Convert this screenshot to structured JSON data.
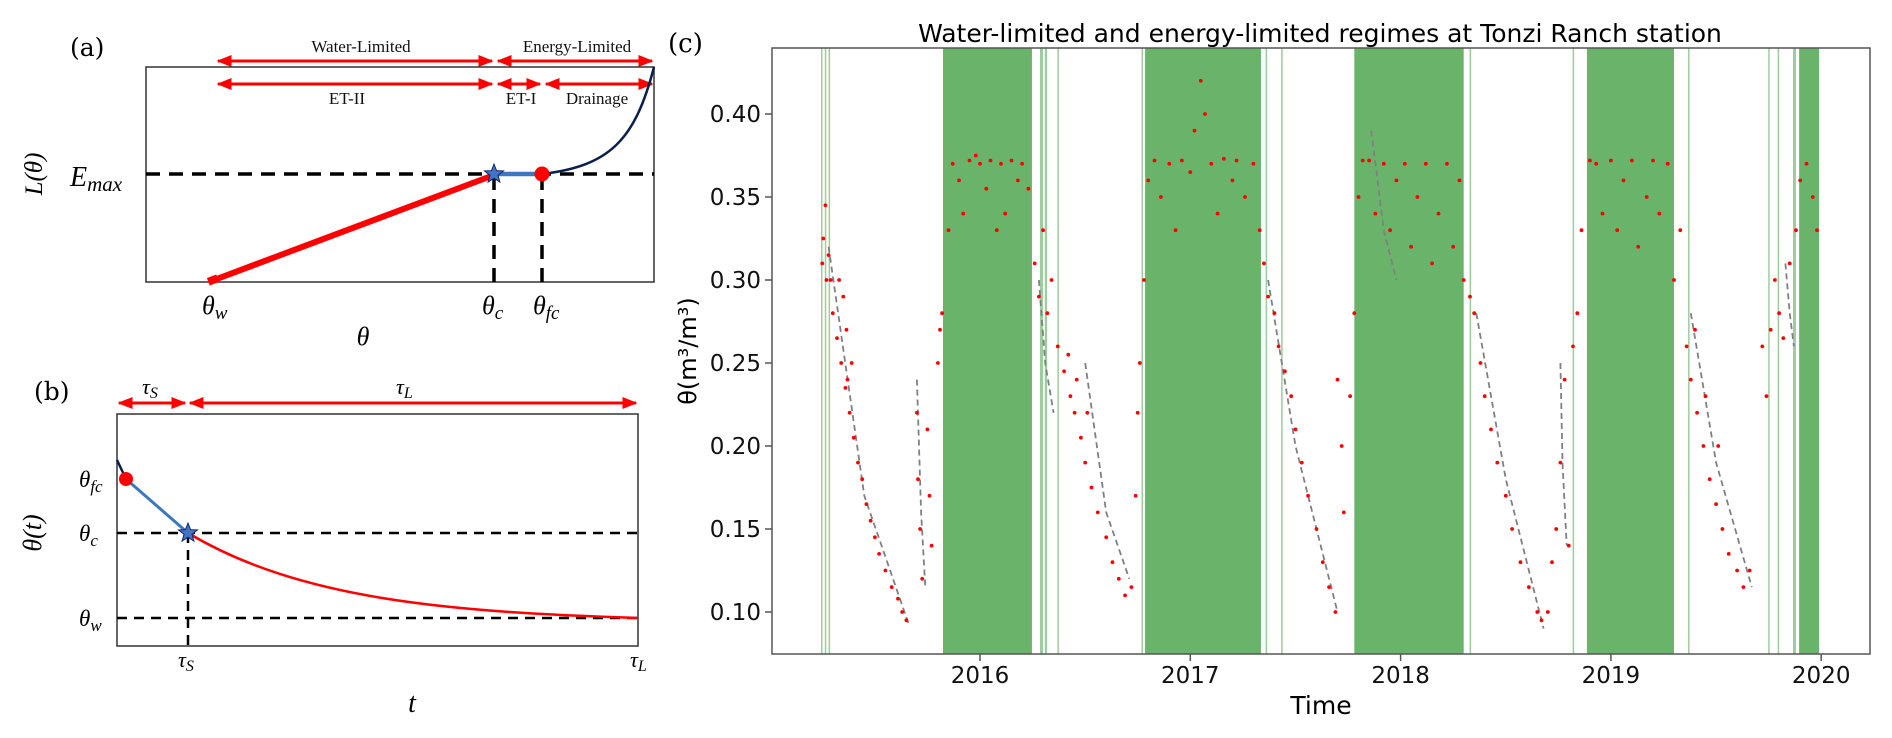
{
  "panel_a": {
    "label": "(a)",
    "ylabel": {
      "base": "L(θ)"
    },
    "emax": {
      "base": "E",
      "sub": "max"
    },
    "xlabel": "θ",
    "theta_w": {
      "base": "θ",
      "sub": "w"
    },
    "theta_c": {
      "base": "θ",
      "sub": "c"
    },
    "theta_fc": {
      "base": "θ",
      "sub": "fc"
    },
    "regimes": {
      "water_limited": "Water-Limited",
      "energy_limited": "Energy-Limited"
    },
    "stages": {
      "et2": "ET-II",
      "et1": "ET-I",
      "drainage": "Drainage"
    },
    "colors": {
      "stage2": "#ff0000",
      "stage1": "#3a78c0",
      "drainage": "#0b1f4d",
      "arrows": "#ff0000"
    }
  },
  "panel_b": {
    "label": "(b)",
    "ylabel": "θ(t)",
    "xlabel": "t",
    "tau_s": {
      "base": "τ",
      "sub": "S"
    },
    "tau_l": {
      "base": "τ",
      "sub": "L"
    },
    "theta_fc": {
      "base": "θ",
      "sub": "fc"
    },
    "theta_c": {
      "base": "θ",
      "sub": "c"
    },
    "theta_w": {
      "base": "θ",
      "sub": "w"
    }
  },
  "panel_c": {
    "label": "(c)"
  },
  "chart_data": {
    "type": "scatter",
    "title": "Water-limited and energy-limited regimes at Tonzi Ranch station",
    "xlabel": "Time",
    "ylabel": "θ(m³/m³)",
    "xlim": [
      2015.01,
      2020.23
    ],
    "ylim": [
      0.075,
      0.44
    ],
    "xticks": [
      2016,
      2017,
      2018,
      2019,
      2020
    ],
    "xtick_labels": [
      "2016",
      "2017",
      "2018",
      "2019",
      "2020"
    ],
    "yticks": [
      0.1,
      0.15,
      0.2,
      0.25,
      0.3,
      0.35,
      0.4
    ],
    "ytick_labels": [
      "0.10",
      "0.15",
      "0.20",
      "0.25",
      "0.30",
      "0.35",
      "0.40"
    ],
    "grid": false,
    "colors": {
      "points": "#ff0000",
      "energy_limited_shading": "#5aab5a",
      "fit": "#808080"
    },
    "energy_limited_periods": [
      [
        2015.244,
        2015.25
      ],
      [
        2015.262,
        2015.268
      ],
      [
        2015.28,
        2015.287
      ],
      [
        2015.824,
        2016.247
      ],
      [
        2016.285,
        2016.3
      ],
      [
        2016.308,
        2016.319
      ],
      [
        2016.368,
        2016.374
      ],
      [
        2016.768,
        2016.773
      ],
      [
        2016.785,
        2017.336
      ],
      [
        2017.358,
        2017.364
      ],
      [
        2017.432,
        2017.438
      ],
      [
        2017.78,
        2018.3
      ],
      [
        2018.328,
        2018.334
      ],
      [
        2018.818,
        2018.823
      ],
      [
        2018.886,
        2019.3
      ],
      [
        2019.367,
        2019.372
      ],
      [
        2019.748,
        2019.752
      ],
      [
        2019.793,
        2019.8
      ],
      [
        2019.866,
        2019.88
      ],
      [
        2019.895,
        2019.99
      ]
    ],
    "points": [
      [
        2015.25,
        0.31
      ],
      [
        2015.255,
        0.325
      ],
      [
        2015.265,
        0.345
      ],
      [
        2015.27,
        0.3
      ],
      [
        2015.28,
        0.315
      ],
      [
        2015.29,
        0.3
      ],
      [
        2015.3,
        0.28
      ],
      [
        2015.32,
        0.265
      ],
      [
        2015.33,
        0.3
      ],
      [
        2015.34,
        0.25
      ],
      [
        2015.35,
        0.29
      ],
      [
        2015.36,
        0.235
      ],
      [
        2015.365,
        0.27
      ],
      [
        2015.37,
        0.24
      ],
      [
        2015.38,
        0.22
      ],
      [
        2015.39,
        0.25
      ],
      [
        2015.4,
        0.205
      ],
      [
        2015.42,
        0.19
      ],
      [
        2015.44,
        0.18
      ],
      [
        2015.46,
        0.165
      ],
      [
        2015.48,
        0.155
      ],
      [
        2015.5,
        0.145
      ],
      [
        2015.52,
        0.135
      ],
      [
        2015.55,
        0.125
      ],
      [
        2015.58,
        0.115
      ],
      [
        2015.61,
        0.108
      ],
      [
        2015.63,
        0.1
      ],
      [
        2015.65,
        0.095
      ],
      [
        2015.7,
        0.22
      ],
      [
        2015.705,
        0.18
      ],
      [
        2015.715,
        0.15
      ],
      [
        2015.725,
        0.12
      ],
      [
        2015.75,
        0.21
      ],
      [
        2015.76,
        0.17
      ],
      [
        2015.77,
        0.14
      ],
      [
        2015.8,
        0.25
      ],
      [
        2015.81,
        0.27
      ],
      [
        2015.82,
        0.28
      ],
      [
        2015.85,
        0.33
      ],
      [
        2015.87,
        0.37
      ],
      [
        2015.9,
        0.36
      ],
      [
        2015.92,
        0.34
      ],
      [
        2015.95,
        0.372
      ],
      [
        2015.98,
        0.375
      ],
      [
        2016.0,
        0.37
      ],
      [
        2016.03,
        0.355
      ],
      [
        2016.05,
        0.372
      ],
      [
        2016.08,
        0.33
      ],
      [
        2016.1,
        0.37
      ],
      [
        2016.12,
        0.34
      ],
      [
        2016.15,
        0.372
      ],
      [
        2016.18,
        0.36
      ],
      [
        2016.2,
        0.37
      ],
      [
        2016.23,
        0.355
      ],
      [
        2016.26,
        0.31
      ],
      [
        2016.28,
        0.29
      ],
      [
        2016.3,
        0.33
      ],
      [
        2016.32,
        0.28
      ],
      [
        2016.34,
        0.3
      ],
      [
        2016.37,
        0.26
      ],
      [
        2016.4,
        0.245
      ],
      [
        2016.42,
        0.255
      ],
      [
        2016.43,
        0.23
      ],
      [
        2016.45,
        0.22
      ],
      [
        2016.46,
        0.24
      ],
      [
        2016.48,
        0.205
      ],
      [
        2016.5,
        0.19
      ],
      [
        2016.51,
        0.22
      ],
      [
        2016.53,
        0.175
      ],
      [
        2016.56,
        0.16
      ],
      [
        2016.6,
        0.145
      ],
      [
        2016.63,
        0.13
      ],
      [
        2016.66,
        0.12
      ],
      [
        2016.69,
        0.11
      ],
      [
        2016.72,
        0.115
      ],
      [
        2016.74,
        0.17
      ],
      [
        2016.75,
        0.22
      ],
      [
        2016.76,
        0.25
      ],
      [
        2016.78,
        0.3
      ],
      [
        2016.8,
        0.36
      ],
      [
        2016.83,
        0.372
      ],
      [
        2016.86,
        0.35
      ],
      [
        2016.9,
        0.37
      ],
      [
        2016.93,
        0.33
      ],
      [
        2016.96,
        0.372
      ],
      [
        2017.0,
        0.365
      ],
      [
        2017.02,
        0.39
      ],
      [
        2017.05,
        0.42
      ],
      [
        2017.07,
        0.4
      ],
      [
        2017.1,
        0.37
      ],
      [
        2017.13,
        0.34
      ],
      [
        2017.16,
        0.373
      ],
      [
        2017.2,
        0.36
      ],
      [
        2017.22,
        0.372
      ],
      [
        2017.26,
        0.35
      ],
      [
        2017.3,
        0.37
      ],
      [
        2017.33,
        0.33
      ],
      [
        2017.35,
        0.31
      ],
      [
        2017.37,
        0.29
      ],
      [
        2017.4,
        0.28
      ],
      [
        2017.42,
        0.26
      ],
      [
        2017.45,
        0.245
      ],
      [
        2017.48,
        0.23
      ],
      [
        2017.5,
        0.21
      ],
      [
        2017.53,
        0.19
      ],
      [
        2017.56,
        0.17
      ],
      [
        2017.6,
        0.15
      ],
      [
        2017.63,
        0.13
      ],
      [
        2017.66,
        0.115
      ],
      [
        2017.69,
        0.1
      ],
      [
        2017.7,
        0.24
      ],
      [
        2017.72,
        0.2
      ],
      [
        2017.73,
        0.16
      ],
      [
        2017.76,
        0.23
      ],
      [
        2017.78,
        0.28
      ],
      [
        2017.8,
        0.35
      ],
      [
        2017.82,
        0.372
      ],
      [
        2017.85,
        0.372
      ],
      [
        2017.88,
        0.34
      ],
      [
        2017.92,
        0.37
      ],
      [
        2017.95,
        0.33
      ],
      [
        2017.98,
        0.36
      ],
      [
        2018.02,
        0.37
      ],
      [
        2018.05,
        0.32
      ],
      [
        2018.08,
        0.35
      ],
      [
        2018.12,
        0.37
      ],
      [
        2018.15,
        0.31
      ],
      [
        2018.18,
        0.34
      ],
      [
        2018.22,
        0.37
      ],
      [
        2018.25,
        0.32
      ],
      [
        2018.28,
        0.36
      ],
      [
        2018.3,
        0.3
      ],
      [
        2018.33,
        0.29
      ],
      [
        2018.35,
        0.28
      ],
      [
        2018.38,
        0.25
      ],
      [
        2018.4,
        0.23
      ],
      [
        2018.43,
        0.21
      ],
      [
        2018.46,
        0.19
      ],
      [
        2018.5,
        0.17
      ],
      [
        2018.53,
        0.15
      ],
      [
        2018.57,
        0.13
      ],
      [
        2018.61,
        0.115
      ],
      [
        2018.65,
        0.1
      ],
      [
        2018.67,
        0.095
      ],
      [
        2018.7,
        0.1
      ],
      [
        2018.72,
        0.13
      ],
      [
        2018.74,
        0.15
      ],
      [
        2018.76,
        0.19
      ],
      [
        2018.78,
        0.24
      ],
      [
        2018.8,
        0.14
      ],
      [
        2018.82,
        0.26
      ],
      [
        2018.84,
        0.28
      ],
      [
        2018.86,
        0.33
      ],
      [
        2018.9,
        0.372
      ],
      [
        2018.93,
        0.37
      ],
      [
        2018.96,
        0.34
      ],
      [
        2019.0,
        0.372
      ],
      [
        2019.03,
        0.33
      ],
      [
        2019.06,
        0.36
      ],
      [
        2019.1,
        0.372
      ],
      [
        2019.13,
        0.32
      ],
      [
        2019.17,
        0.35
      ],
      [
        2019.2,
        0.372
      ],
      [
        2019.23,
        0.34
      ],
      [
        2019.27,
        0.37
      ],
      [
        2019.3,
        0.3
      ],
      [
        2019.33,
        0.33
      ],
      [
        2019.36,
        0.26
      ],
      [
        2019.38,
        0.24
      ],
      [
        2019.4,
        0.27
      ],
      [
        2019.41,
        0.22
      ],
      [
        2019.44,
        0.2
      ],
      [
        2019.45,
        0.23
      ],
      [
        2019.47,
        0.18
      ],
      [
        2019.5,
        0.165
      ],
      [
        2019.51,
        0.2
      ],
      [
        2019.53,
        0.15
      ],
      [
        2019.56,
        0.135
      ],
      [
        2019.6,
        0.125
      ],
      [
        2019.63,
        0.115
      ],
      [
        2019.66,
        0.125
      ],
      [
        2019.72,
        0.26
      ],
      [
        2019.74,
        0.23
      ],
      [
        2019.76,
        0.27
      ],
      [
        2019.78,
        0.3
      ],
      [
        2019.8,
        0.28
      ],
      [
        2019.82,
        0.265
      ],
      [
        2019.85,
        0.31
      ],
      [
        2019.88,
        0.33
      ],
      [
        2019.9,
        0.36
      ],
      [
        2019.93,
        0.37
      ],
      [
        2019.96,
        0.35
      ],
      [
        2019.98,
        0.33
      ]
    ],
    "drydown_fits": [
      [
        [
          2015.28,
          0.32
        ],
        [
          2015.45,
          0.17
        ],
        [
          2015.66,
          0.093
        ]
      ],
      [
        [
          2015.7,
          0.24
        ],
        [
          2015.72,
          0.16
        ],
        [
          2015.74,
          0.115
        ]
      ],
      [
        [
          2016.28,
          0.3
        ],
        [
          2016.31,
          0.25
        ],
        [
          2016.35,
          0.22
        ]
      ],
      [
        [
          2016.5,
          0.25
        ],
        [
          2016.6,
          0.16
        ],
        [
          2016.71,
          0.12
        ]
      ],
      [
        [
          2017.37,
          0.3
        ],
        [
          2017.5,
          0.2
        ],
        [
          2017.7,
          0.1
        ]
      ],
      [
        [
          2017.86,
          0.39
        ],
        [
          2017.92,
          0.33
        ],
        [
          2017.98,
          0.3
        ]
      ],
      [
        [
          2018.36,
          0.28
        ],
        [
          2018.5,
          0.18
        ],
        [
          2018.68,
          0.09
        ]
      ],
      [
        [
          2018.76,
          0.25
        ],
        [
          2018.77,
          0.19
        ],
        [
          2018.79,
          0.14
        ]
      ],
      [
        [
          2019.38,
          0.28
        ],
        [
          2019.5,
          0.19
        ],
        [
          2019.67,
          0.115
        ]
      ],
      [
        [
          2019.83,
          0.31
        ],
        [
          2019.85,
          0.28
        ],
        [
          2019.87,
          0.26
        ]
      ]
    ]
  }
}
